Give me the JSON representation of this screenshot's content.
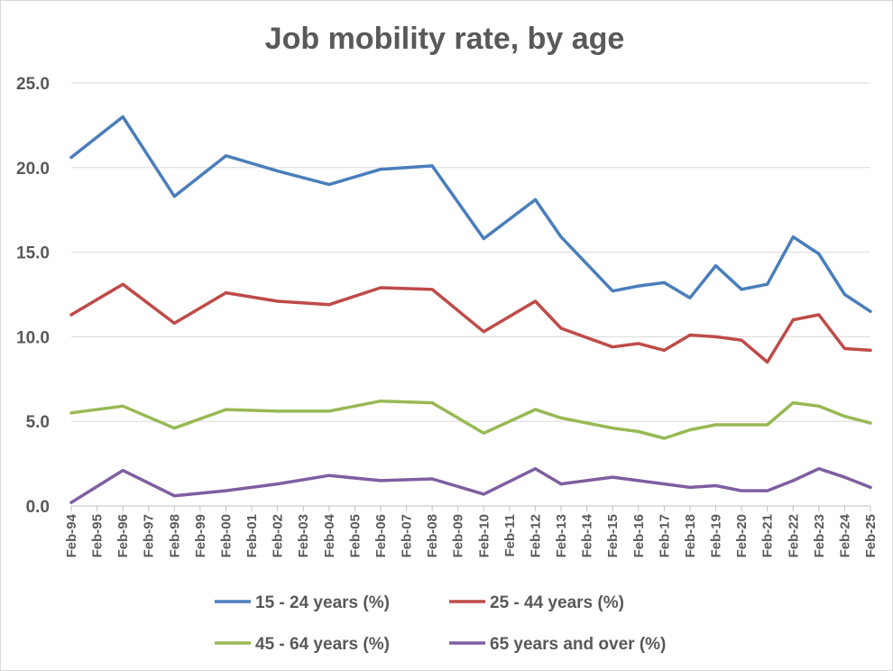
{
  "chart_data": {
    "type": "line",
    "title": "Job mobility rate, by age",
    "xlabel": "",
    "ylabel": "",
    "ylim": [
      0,
      25
    ],
    "yticks": [
      "0.0",
      "5.0",
      "10.0",
      "15.0",
      "20.0",
      "25.0"
    ],
    "grid": true,
    "legend_position": "bottom",
    "categories": [
      "Feb-94",
      "Feb-95",
      "Feb-96",
      "Feb-97",
      "Feb-98",
      "Feb-99",
      "Feb-00",
      "Feb-01",
      "Feb-02",
      "Feb-03",
      "Feb-04",
      "Feb-05",
      "Feb-06",
      "Feb-07",
      "Feb-08",
      "Feb-09",
      "Feb-10",
      "Feb-11",
      "Feb-12",
      "Feb-13",
      "Feb-14",
      "Feb-15",
      "Feb-16",
      "Feb-17",
      "Feb-18",
      "Feb-19",
      "Feb-20",
      "Feb-21",
      "Feb-22",
      "Feb-23",
      "Feb-24",
      "Feb-25"
    ],
    "series": [
      {
        "name": "15 - 24 years (%)",
        "color": "#4a7ebb",
        "points": [
          [
            "Feb-94",
            20.6
          ],
          [
            "Feb-96",
            23.0
          ],
          [
            "Feb-98",
            18.3
          ],
          [
            "Feb-00",
            20.7
          ],
          [
            "Feb-02",
            19.8
          ],
          [
            "Feb-04",
            19.0
          ],
          [
            "Feb-06",
            19.9
          ],
          [
            "Feb-08",
            20.1
          ],
          [
            "Feb-10",
            15.8
          ],
          [
            "Feb-12",
            18.1
          ],
          [
            "Feb-13",
            15.9
          ],
          [
            "Feb-15",
            12.7
          ],
          [
            "Feb-16",
            13.0
          ],
          [
            "Feb-17",
            13.2
          ],
          [
            "Feb-18",
            12.3
          ],
          [
            "Feb-19",
            14.2
          ],
          [
            "Feb-20",
            12.8
          ],
          [
            "Feb-21",
            13.1
          ],
          [
            "Feb-22",
            15.9
          ],
          [
            "Feb-23",
            14.9
          ],
          [
            "Feb-24",
            12.5
          ],
          [
            "Feb-25",
            11.5
          ]
        ]
      },
      {
        "name": "25 - 44 years (%)",
        "color": "#be4b48",
        "points": [
          [
            "Feb-94",
            11.3
          ],
          [
            "Feb-96",
            13.1
          ],
          [
            "Feb-98",
            10.8
          ],
          [
            "Feb-00",
            12.6
          ],
          [
            "Feb-02",
            12.1
          ],
          [
            "Feb-04",
            11.9
          ],
          [
            "Feb-06",
            12.9
          ],
          [
            "Feb-08",
            12.8
          ],
          [
            "Feb-10",
            10.3
          ],
          [
            "Feb-12",
            12.1
          ],
          [
            "Feb-13",
            10.5
          ],
          [
            "Feb-15",
            9.4
          ],
          [
            "Feb-16",
            9.6
          ],
          [
            "Feb-17",
            9.2
          ],
          [
            "Feb-18",
            10.1
          ],
          [
            "Feb-19",
            10.0
          ],
          [
            "Feb-20",
            9.8
          ],
          [
            "Feb-21",
            8.5
          ],
          [
            "Feb-22",
            11.0
          ],
          [
            "Feb-23",
            11.3
          ],
          [
            "Feb-24",
            9.3
          ],
          [
            "Feb-25",
            9.2
          ]
        ]
      },
      {
        "name": "45 - 64 years (%)",
        "color": "#98b954",
        "points": [
          [
            "Feb-94",
            5.5
          ],
          [
            "Feb-96",
            5.9
          ],
          [
            "Feb-98",
            4.6
          ],
          [
            "Feb-00",
            5.7
          ],
          [
            "Feb-02",
            5.6
          ],
          [
            "Feb-04",
            5.6
          ],
          [
            "Feb-06",
            6.2
          ],
          [
            "Feb-08",
            6.1
          ],
          [
            "Feb-10",
            4.3
          ],
          [
            "Feb-12",
            5.7
          ],
          [
            "Feb-13",
            5.2
          ],
          [
            "Feb-15",
            4.6
          ],
          [
            "Feb-16",
            4.4
          ],
          [
            "Feb-17",
            4.0
          ],
          [
            "Feb-18",
            4.5
          ],
          [
            "Feb-19",
            4.8
          ],
          [
            "Feb-20",
            4.8
          ],
          [
            "Feb-21",
            4.8
          ],
          [
            "Feb-22",
            6.1
          ],
          [
            "Feb-23",
            5.9
          ],
          [
            "Feb-24",
            5.3
          ],
          [
            "Feb-25",
            4.9
          ]
        ]
      },
      {
        "name": "65 years and over (%)",
        "color": "#7d5fa0",
        "points": [
          [
            "Feb-94",
            0.2
          ],
          [
            "Feb-96",
            2.1
          ],
          [
            "Feb-98",
            0.6
          ],
          [
            "Feb-00",
            0.9
          ],
          [
            "Feb-02",
            1.3
          ],
          [
            "Feb-04",
            1.8
          ],
          [
            "Feb-06",
            1.5
          ],
          [
            "Feb-08",
            1.6
          ],
          [
            "Feb-10",
            0.7
          ],
          [
            "Feb-12",
            2.2
          ],
          [
            "Feb-13",
            1.3
          ],
          [
            "Feb-15",
            1.7
          ],
          [
            "Feb-16",
            1.5
          ],
          [
            "Feb-17",
            1.3
          ],
          [
            "Feb-18",
            1.1
          ],
          [
            "Feb-19",
            1.2
          ],
          [
            "Feb-20",
            0.9
          ],
          [
            "Feb-21",
            0.9
          ],
          [
            "Feb-22",
            1.5
          ],
          [
            "Feb-23",
            2.2
          ],
          [
            "Feb-24",
            1.7
          ],
          [
            "Feb-25",
            1.1
          ]
        ]
      }
    ]
  }
}
